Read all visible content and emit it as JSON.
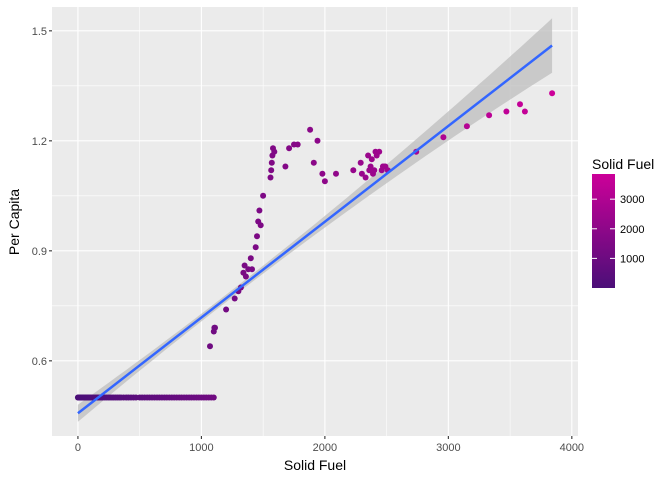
{
  "chart_data": {
    "type": "scatter",
    "xlabel": "Solid Fuel",
    "ylabel": "Per Capita",
    "xlim": [
      -210,
      4050
    ],
    "ylim": [
      0.395,
      1.565
    ],
    "x_ticks": [
      0,
      1000,
      2000,
      3000,
      4000
    ],
    "x_tick_labels": [
      "0",
      "1000",
      "2000",
      "3000",
      "4000"
    ],
    "y_ticks": [
      0.6,
      0.9,
      1.2,
      1.5
    ],
    "y_tick_labels": [
      "0.6",
      "0.9",
      "1.2",
      "1.5"
    ],
    "grid": true,
    "colors": {
      "panel": "#EBEBEB",
      "grid": "#FFFFFF",
      "low": "#4B0F78",
      "high": "#CC0099",
      "trend": "#3366FF",
      "band": "#BDBDBD"
    },
    "color_legend": {
      "title": "Solid Fuel",
      "position": "right",
      "min": 0,
      "max": 3850,
      "breaks": [
        1000,
        2000,
        3000
      ],
      "break_labels": [
        "1000",
        "2000",
        "3000"
      ]
    },
    "trend": {
      "method": "linear",
      "x_start": 0,
      "y_start": 0.457,
      "x_end": 3840,
      "y_end": 1.46
    },
    "series": [
      {
        "x": [
          0,
          5,
          10,
          15,
          20,
          25,
          30,
          35,
          40,
          45,
          50,
          55,
          60,
          65,
          70,
          75,
          80,
          85,
          90,
          95,
          100,
          110,
          120,
          130,
          140,
          150,
          160,
          170,
          180,
          190,
          200,
          215,
          230,
          245,
          260,
          275,
          290,
          305,
          320,
          335,
          350,
          370,
          390,
          410,
          430,
          450,
          470,
          500,
          520,
          540,
          560,
          580,
          600,
          620,
          640,
          660,
          680,
          700,
          720,
          740,
          760,
          780,
          800,
          820,
          840,
          860,
          880,
          900,
          920,
          940,
          960,
          980,
          1000,
          1020,
          1040,
          1060,
          1080,
          1100
        ],
        "y": [
          0.5,
          0.5,
          0.5,
          0.5,
          0.5,
          0.5,
          0.5,
          0.5,
          0.5,
          0.5,
          0.5,
          0.5,
          0.5,
          0.5,
          0.5,
          0.5,
          0.5,
          0.5,
          0.5,
          0.5,
          0.5,
          0.5,
          0.5,
          0.5,
          0.5,
          0.5,
          0.5,
          0.5,
          0.5,
          0.5,
          0.5,
          0.5,
          0.5,
          0.5,
          0.5,
          0.5,
          0.5,
          0.5,
          0.5,
          0.5,
          0.5,
          0.5,
          0.5,
          0.5,
          0.5,
          0.5,
          0.5,
          0.5,
          0.5,
          0.5,
          0.5,
          0.5,
          0.5,
          0.5,
          0.5,
          0.5,
          0.5,
          0.5,
          0.5,
          0.5,
          0.5,
          0.5,
          0.5,
          0.5,
          0.5,
          0.5,
          0.5,
          0.5,
          0.5,
          0.5,
          0.5,
          0.5,
          0.5,
          0.5,
          0.5,
          0.5,
          0.5,
          0.5
        ]
      },
      {
        "x": [
          1070,
          1100,
          1105,
          1110,
          1200,
          1270,
          1300,
          1320,
          1340,
          1350,
          1360,
          1380,
          1400,
          1410,
          1440,
          1450,
          1460,
          1470,
          1480,
          1500,
          1560,
          1565,
          1570,
          1575,
          1580,
          1590,
          1680,
          1710,
          1750,
          1780,
          1880,
          1910,
          1940,
          1980,
          2000,
          2090,
          2230,
          2290,
          2300,
          2330,
          2350,
          2360,
          2370,
          2380,
          2390,
          2400,
          2410,
          2420,
          2440,
          2460,
          2470,
          2480,
          2490,
          2510,
          2740,
          2960,
          3150,
          3330,
          3470,
          3580,
          3620,
          3840
        ],
        "y": [
          0.64,
          0.68,
          0.69,
          0.69,
          0.74,
          0.77,
          0.79,
          0.8,
          0.84,
          0.86,
          0.83,
          0.85,
          0.88,
          0.85,
          0.91,
          0.94,
          0.98,
          1.01,
          0.97,
          1.05,
          1.1,
          1.12,
          1.14,
          1.16,
          1.18,
          1.17,
          1.13,
          1.18,
          1.19,
          1.19,
          1.23,
          1.14,
          1.2,
          1.11,
          1.09,
          1.11,
          1.12,
          1.14,
          1.11,
          1.1,
          1.16,
          1.12,
          1.13,
          1.15,
          1.11,
          1.12,
          1.17,
          1.16,
          1.17,
          1.12,
          1.13,
          1.13,
          1.13,
          1.12,
          1.17,
          1.21,
          1.24,
          1.27,
          1.28,
          1.3,
          1.28,
          1.33
        ]
      }
    ]
  }
}
